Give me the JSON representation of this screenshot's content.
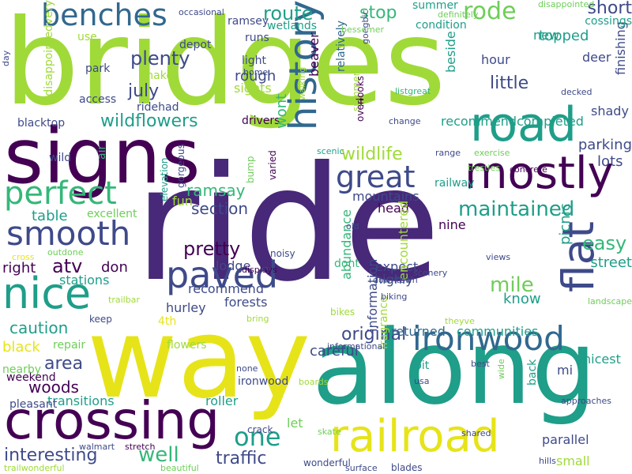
{
  "colors": {
    "purple": "#440154",
    "indigo": "#482878",
    "slate": "#3e4a89",
    "blue": "#31688e",
    "teal": "#26828e",
    "tealgreen": "#1f9e89",
    "green": "#35b779",
    "lime": "#6ece58",
    "yellowgreen": "#a0da39",
    "yellow": "#e6e419"
  },
  "words": [
    "bridges",
    "ride",
    "way",
    "along",
    "signs",
    "road",
    "crossing",
    "mostly",
    "history",
    "nice",
    "railroad",
    "ironwood",
    "smooth",
    "flat",
    "paved",
    "perfect",
    "benches",
    "great",
    "wildlife",
    "one",
    "maintained",
    "pretty",
    "rode",
    "route",
    "plenty",
    "wildflowers",
    "interesting",
    "mile",
    "atv",
    "section",
    "ramsay",
    "easy",
    "stop",
    "well",
    "traffic",
    "original",
    "area",
    "woods",
    "picnic",
    "caution",
    "july",
    "short",
    "little",
    "table",
    "topped",
    "head",
    "hurley",
    "forests",
    "expect",
    "highly",
    "careful",
    "returned",
    "communities",
    "know",
    "parking",
    "lots",
    "street",
    "dont",
    "abundance",
    "encountered",
    "information",
    "fragrance",
    "lodge",
    "mountains",
    "recommend",
    "recommendcompleted",
    "hour",
    "deer",
    "beside",
    "shady",
    "finishing",
    "sights",
    "snake",
    "rough",
    "runs",
    "light",
    "depot",
    "ramsey",
    "wetlands",
    "summer",
    "condition",
    "cossings",
    "new",
    "blacktop",
    "ridehad",
    "drivers",
    "wont",
    "air",
    "wild",
    "range",
    "change",
    "listgreat",
    "decked",
    "beaver",
    "relatively",
    "summers",
    "t",
    "nine",
    "railway",
    "mi",
    "nicest",
    "transitions",
    "weekend",
    "let",
    "black",
    "repair",
    "flowers",
    "4th",
    "right",
    "don",
    "stations",
    "excellent",
    "fun",
    "elevation",
    "gorgeous",
    "varied",
    "bump",
    "noisy",
    "old",
    "exercise",
    "concrete",
    "trestles",
    "scenic",
    "overlooks",
    "goegbic",
    "walking",
    "home",
    "bessemer",
    "occasional",
    "definitely",
    "disappointed",
    "day",
    "use",
    "park",
    "access",
    "disappointedvery",
    "outdone",
    "cross",
    "displays",
    "scenery",
    "downtown",
    "views",
    "biking",
    "trailbar",
    "keep",
    "bring",
    "bikes",
    "theyve",
    "landscape",
    "informational",
    "best",
    "none",
    "boards",
    "usa",
    "approaches",
    "wide",
    "back",
    "parallel",
    "small",
    "nearby",
    "pleasant",
    "roller",
    "crack",
    "walmart",
    "stretch",
    "beautiful",
    "trailwonderful",
    "skate",
    "wonderful",
    "surface",
    "blades",
    "shared",
    "bit",
    "hills",
    "ironwood"
  ]
}
